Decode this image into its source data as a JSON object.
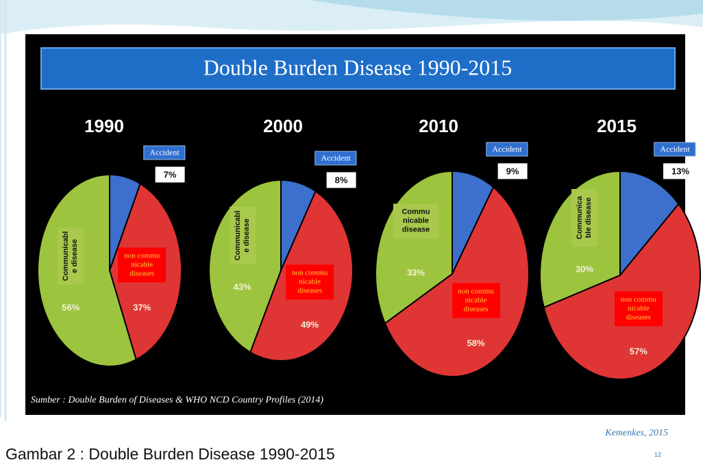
{
  "title": "Double Burden Disease 1990-2015",
  "chart_data": [
    {
      "type": "pie",
      "title": "1990",
      "categories": [
        "Accident",
        "non commu nicable diseases",
        "Communicabl e disease"
      ],
      "values": [
        7,
        37,
        56
      ],
      "value_labels": [
        "7%",
        "37%",
        "56%"
      ],
      "colors": [
        "#3d6fcc",
        "#df3535",
        "#9dc43e"
      ]
    },
    {
      "type": "pie",
      "title": "2000",
      "categories": [
        "Accident",
        "non commu nicable diseases",
        "Communicabl e disease"
      ],
      "values": [
        8,
        49,
        43
      ],
      "value_labels": [
        "8%",
        "49%",
        "43%"
      ],
      "colors": [
        "#3d6fcc",
        "#df3535",
        "#9dc43e"
      ]
    },
    {
      "type": "pie",
      "title": "2010",
      "categories": [
        "Accident",
        "non commu nicable diseases",
        "Commu nicable disease"
      ],
      "values": [
        9,
        58,
        33
      ],
      "value_labels": [
        "9%",
        "58%",
        "33%"
      ],
      "colors": [
        "#3d6fcc",
        "#df3535",
        "#9dc43e"
      ]
    },
    {
      "type": "pie",
      "title": "2015",
      "categories": [
        "Accident",
        "non commu nicable diseases",
        "Communica ble disease"
      ],
      "values": [
        13,
        57,
        30
      ],
      "value_labels": [
        "13%",
        "57%",
        "30%"
      ],
      "colors": [
        "#3d6fcc",
        "#df3535",
        "#9dc43e"
      ]
    }
  ],
  "source": "Sumber : Double Burden of Diseases & WHO NCD Country Profiles (2014)",
  "credit": "Kemenkes, 2015",
  "page_number": "12",
  "caption": "Gambar 2 : Double Burden Disease 1990-2015"
}
